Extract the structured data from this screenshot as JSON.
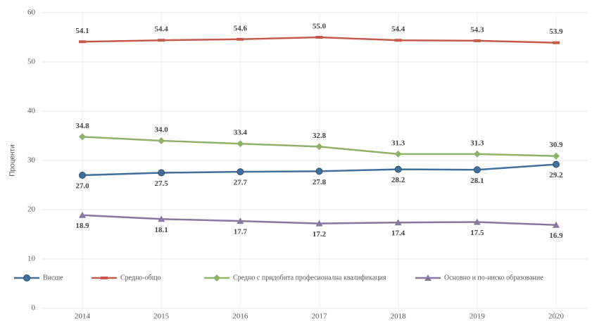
{
  "chart_data": {
    "type": "line",
    "ylabel": "Проценти",
    "categories": [
      "2014",
      "2015",
      "2016",
      "2017",
      "2018",
      "2019",
      "2020"
    ],
    "series": [
      {
        "name": "Висше",
        "color": "#41709a",
        "marker": "circle",
        "values": [
          27.0,
          27.5,
          27.7,
          27.8,
          28.2,
          28.1,
          29.2
        ],
        "value_labels": [
          "27.0",
          "27.5",
          "27.7",
          "27.8",
          "28.2",
          "28.1",
          "29.2"
        ]
      },
      {
        "name": "Средно-общо",
        "color": "#c55a4a",
        "marker": "dash",
        "values": [
          54.1,
          54.4,
          54.6,
          55.0,
          54.4,
          54.3,
          53.9
        ],
        "value_labels": [
          "54.1",
          "54.4",
          "54.6",
          "55.0",
          "54.4",
          "54.3",
          "53.9"
        ]
      },
      {
        "name": "Средно с придобита професионална квалификация",
        "color": "#8fb26a",
        "marker": "diamond",
        "values": [
          34.8,
          34.0,
          33.4,
          32.8,
          31.3,
          31.3,
          30.9
        ],
        "value_labels": [
          "34.8",
          "34.0",
          "33.4",
          "32.8",
          "31.3",
          "31.3",
          "30.9"
        ]
      },
      {
        "name": "Основно и по-ниско образование",
        "color": "#8878a0",
        "marker": "triangle",
        "values": [
          18.9,
          18.1,
          17.7,
          17.2,
          17.4,
          17.5,
          16.9
        ],
        "value_labels": [
          "18.9",
          "18.1",
          "17.7",
          "17.2",
          "17.4",
          "17.5",
          "16.9"
        ]
      }
    ],
    "ylim": [
      0,
      60
    ],
    "yticks": [
      0,
      10,
      20,
      30,
      40,
      50,
      60
    ],
    "grid": true,
    "legend": "lower left"
  }
}
